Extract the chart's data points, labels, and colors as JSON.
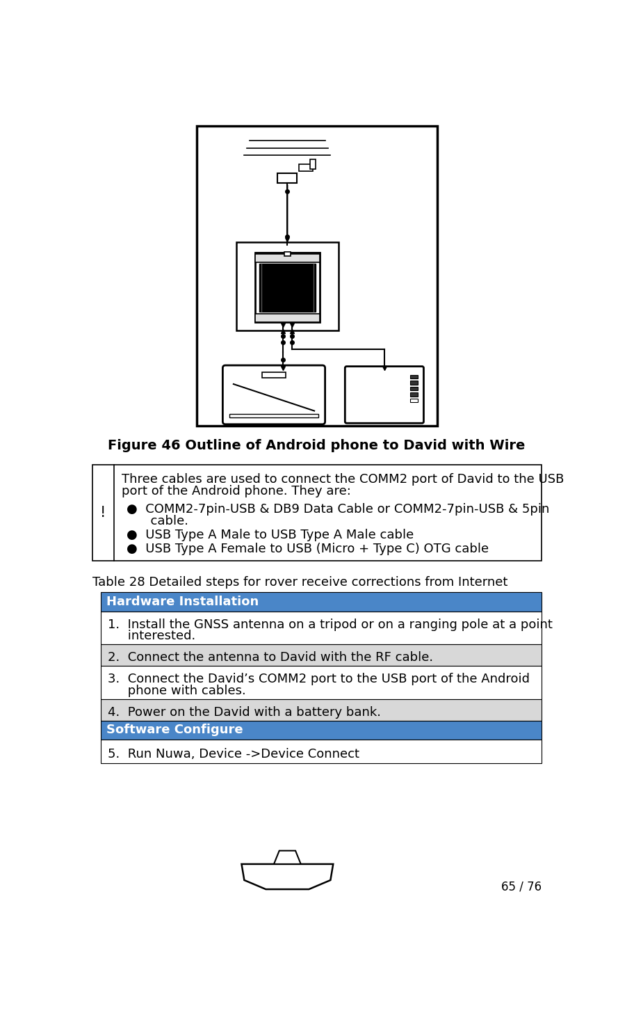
{
  "figure_caption": "Figure 46 Outline of Android phone to David with Wire",
  "warning_symbol": "!",
  "warning_text_line1": "Three cables are used to connect the COMM2 port of David to the USB",
  "warning_text_line2": "port of the Android phone. They are:",
  "bullet1": "●  COMM2-7pin-USB & DB9 Data Cable or COMM2-7pin-USB & 5pin",
  "bullet1b": "      cable.",
  "bullet2": "●  USB Type A Male to USB Type A Male cable",
  "bullet3": "●  USB Type A Female to USB (Micro + Type C) OTG cable",
  "table_title": "Table 28 Detailed steps for rover receive corrections from Internet",
  "header1_text": "Hardware Installation",
  "header1_bg": "#4a86c8",
  "header1_fg": "#ffffff",
  "row1_text": "1.  Install the GNSS antenna on a tripod or on a ranging pole at a point\n     interested.",
  "row1_bg": "#ffffff",
  "row2_text": "2.  Connect the antenna to David with the RF cable.",
  "row2_bg": "#d8d8d8",
  "row3_text": "3.  Connect the David’s COMM2 port to the USB port of the Android\n     phone with cables.",
  "row3_bg": "#ffffff",
  "row4_text": "4.  Power on the David with a battery bank.",
  "row4_bg": "#d8d8d8",
  "header2_text": "Software Configure",
  "header2_bg": "#4a86c8",
  "header2_fg": "#ffffff",
  "row5_text": "5.  Run Nuwa, Device ->Device Connect",
  "row5_bg": "#ffffff",
  "page_number": "65 / 76",
  "bg_color": "#ffffff"
}
